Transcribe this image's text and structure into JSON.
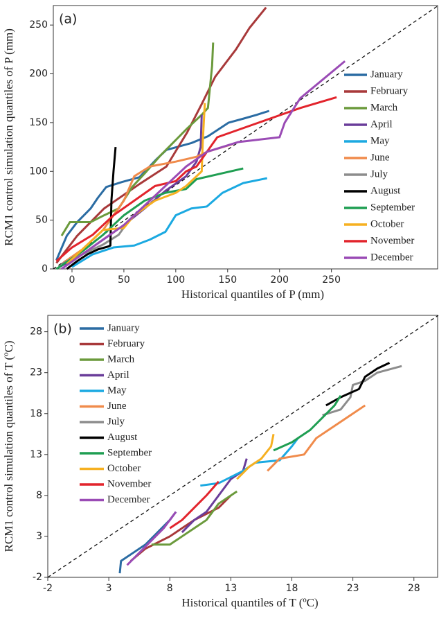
{
  "chart_data": [
    {
      "type": "line",
      "label": "(a)",
      "x_label": "Historical quantiles of  P (mm)",
      "y_label": "RCM1 control simulation quantiles of P (mm)",
      "xlim": [
        -18,
        353
      ],
      "ylim": [
        0,
        270
      ],
      "xticks": [
        0,
        50,
        100,
        150,
        200,
        250
      ],
      "yticks": [
        0,
        50,
        100,
        150,
        200,
        250
      ],
      "series": [
        {
          "name": "January",
          "color": "#2b6ca3",
          "x": [
            -15,
            -5,
            5,
            18,
            25,
            33,
            48,
            65,
            81,
            91,
            115,
            131,
            151,
            165,
            178,
            190
          ],
          "y": [
            9,
            34,
            48,
            62,
            73,
            84,
            89,
            94,
            112,
            122,
            129,
            136,
            150,
            154,
            158,
            162
          ]
        },
        {
          "name": "February",
          "color": "#a8393a",
          "x": [
            -15,
            5,
            31,
            65,
            91,
            111,
            125,
            138,
            158,
            171,
            187
          ],
          "y": [
            6,
            34,
            62,
            87,
            105,
            140,
            169,
            197,
            225,
            247,
            268
          ]
        },
        {
          "name": "March",
          "color": "#6b9a3c",
          "x": [
            -10,
            -2,
            18,
            31,
            45,
            58,
            71,
            85,
            98,
            111,
            125,
            131,
            135,
            136
          ],
          "y": [
            34,
            48,
            48,
            55,
            62,
            84,
            99,
            116,
            130,
            144,
            158,
            165,
            208,
            232
          ]
        },
        {
          "name": "April",
          "color": "#6a3d9a",
          "x": [
            -12,
            10,
            30,
            50,
            70,
            90,
            110,
            120,
            124,
            125
          ],
          "y": [
            2,
            15,
            30,
            45,
            62,
            80,
            95,
            110,
            125,
            158
          ]
        },
        {
          "name": "May",
          "color": "#1ba9e1",
          "x": [
            0,
            20,
            40,
            60,
            75,
            90,
            100,
            115,
            130,
            145,
            165,
            188
          ],
          "y": [
            2,
            15,
            22,
            24,
            30,
            38,
            55,
            62,
            64,
            78,
            88,
            93
          ]
        },
        {
          "name": "June",
          "color": "#f08b4b",
          "x": [
            -10,
            10,
            30,
            50,
            60,
            75,
            100,
            120,
            130,
            155
          ],
          "y": [
            5,
            20,
            40,
            70,
            95,
            105,
            110,
            115,
            120,
            128
          ]
        },
        {
          "name": "July",
          "color": "#8c8c8c",
          "x": [
            -10,
            10,
            30,
            45,
            55
          ],
          "y": [
            5,
            15,
            25,
            35,
            50
          ]
        },
        {
          "name": "August",
          "color": "#000000",
          "x": [
            -5,
            5,
            15,
            25,
            35,
            37,
            38,
            40,
            42
          ],
          "y": [
            0,
            8,
            15,
            20,
            23,
            24,
            70,
            100,
            125
          ]
        },
        {
          "name": "September",
          "color": "#1f9e52",
          "x": [
            -15,
            10,
            30,
            50,
            70,
            90,
            110,
            120,
            165
          ],
          "y": [
            0,
            18,
            35,
            55,
            70,
            78,
            82,
            92,
            103
          ]
        },
        {
          "name": "October",
          "color": "#f6b021",
          "x": [
            -5,
            15,
            30,
            50,
            60,
            80,
            100,
            110,
            125,
            126,
            128
          ],
          "y": [
            5,
            25,
            40,
            42,
            55,
            70,
            78,
            85,
            100,
            130,
            170
          ]
        },
        {
          "name": "November",
          "color": "#e2242c",
          "x": [
            -15,
            0,
            20,
            40,
            60,
            80,
            100,
            110,
            120,
            140,
            180,
            220,
            255
          ],
          "y": [
            8,
            22,
            35,
            55,
            70,
            85,
            90,
            100,
            105,
            135,
            150,
            165,
            176
          ]
        },
        {
          "name": "December",
          "color": "#9a4bb5",
          "x": [
            -10,
            10,
            30,
            50,
            70,
            90,
            110,
            130,
            160,
            200,
            205,
            220,
            263
          ],
          "y": [
            0,
            15,
            30,
            45,
            65,
            85,
            105,
            120,
            130,
            135,
            150,
            175,
            213
          ]
        }
      ]
    },
    {
      "type": "line",
      "label": "(b)",
      "x_label": "Historical quantiles of  T (ºC)",
      "y_label": "RCM1 control simulation quantiles of  T (ºC)",
      "xlim": [
        -2,
        30
      ],
      "ylim": [
        -2,
        30
      ],
      "xticks": [
        -2,
        3,
        8,
        13,
        18,
        23,
        28
      ],
      "yticks": [
        -2,
        3,
        8,
        13,
        18,
        23,
        28
      ],
      "series": [
        {
          "name": "January",
          "color": "#2b6ca3",
          "x": [
            3.9,
            4.0,
            5,
            6,
            7,
            8,
            8.5
          ],
          "y": [
            -1.5,
            0,
            1,
            2,
            3.5,
            5,
            6
          ]
        },
        {
          "name": "February",
          "color": "#a8393a",
          "x": [
            4.8,
            6,
            8,
            10,
            12,
            13
          ],
          "y": [
            0,
            1.5,
            3,
            5,
            6.5,
            8
          ]
        },
        {
          "name": "March",
          "color": "#6b9a3c",
          "x": [
            6.5,
            8,
            9,
            11,
            12,
            13.5
          ],
          "y": [
            2,
            2,
            3,
            5,
            7,
            8.5
          ]
        },
        {
          "name": "April",
          "color": "#6a3d9a",
          "x": [
            9,
            10,
            11,
            12,
            13,
            14,
            14.3
          ],
          "y": [
            3.5,
            5,
            6,
            8,
            10,
            11,
            12.5
          ]
        },
        {
          "name": "May",
          "color": "#1ba9e1",
          "x": [
            10.5,
            12,
            14,
            15,
            17,
            18,
            18.5
          ],
          "y": [
            9.2,
            9.5,
            11,
            12,
            12.3,
            14,
            15
          ]
        },
        {
          "name": "June",
          "color": "#f08b4b",
          "x": [
            16,
            17,
            19,
            20,
            21,
            23,
            24
          ],
          "y": [
            11,
            12.5,
            13,
            15,
            16,
            18,
            19
          ]
        },
        {
          "name": "July",
          "color": "#8c8c8c",
          "x": [
            20.5,
            22,
            22.8,
            23,
            24,
            25,
            27
          ],
          "y": [
            17.8,
            18.5,
            20,
            21.5,
            22,
            23,
            23.8
          ]
        },
        {
          "name": "August",
          "color": "#000000",
          "x": [
            20.8,
            22,
            23.5,
            24,
            25,
            26
          ],
          "y": [
            19,
            20,
            21,
            22.5,
            23.5,
            24.2
          ]
        },
        {
          "name": "September",
          "color": "#1f9e52",
          "x": [
            16.5,
            18,
            19.5,
            20.5,
            21.5,
            22
          ],
          "y": [
            13.5,
            14.5,
            16,
            17.5,
            19,
            20.2
          ]
        },
        {
          "name": "October",
          "color": "#f6b021",
          "x": [
            13.5,
            14.5,
            15.5,
            16.3,
            16.5
          ],
          "y": [
            10,
            11.5,
            12.5,
            14,
            15.5
          ]
        },
        {
          "name": "November",
          "color": "#e2242c",
          "x": [
            8,
            9,
            10,
            11,
            12
          ],
          "y": [
            4,
            5,
            6.5,
            8,
            9.7
          ]
        },
        {
          "name": "December",
          "color": "#9a4bb5",
          "x": [
            4.5,
            5.5,
            6.5,
            7.5,
            8.5
          ],
          "y": [
            -0.5,
            1,
            2.5,
            4,
            6
          ]
        }
      ]
    }
  ]
}
